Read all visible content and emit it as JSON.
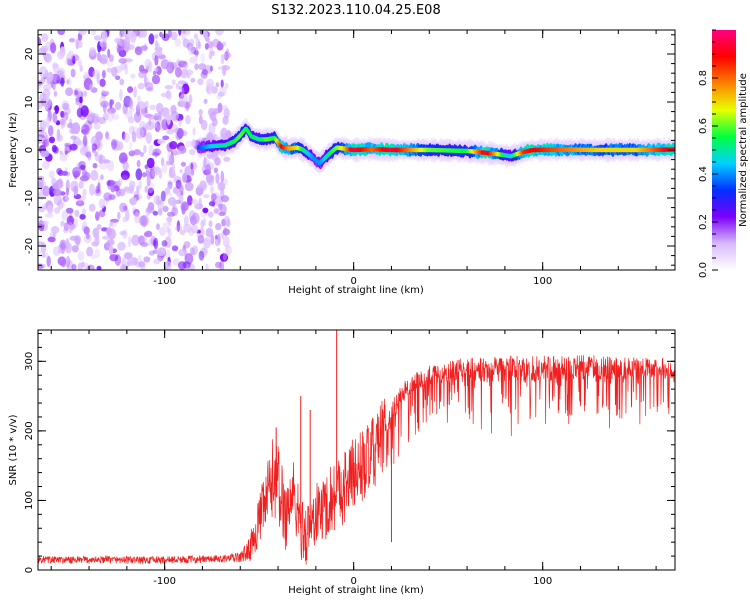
{
  "title": "S132.2023.110.04.25.E08",
  "colors": {
    "background": "#ffffff",
    "axis": "#000000",
    "snr_line": "#f02020",
    "spectrogram_background": "#ffffff"
  },
  "colormap": [
    "#ffffff",
    "#d8b8ff",
    "#7a00ff",
    "#0030ff",
    "#00d0ff",
    "#00ff40",
    "#e8ff00",
    "#ff8000",
    "#ff0000",
    "#ff0080"
  ],
  "chart_data": [
    {
      "type": "heatmap",
      "xlabel": "Height of straight line (km)",
      "ylabel": "Frequency (Hz)",
      "xlim": [
        -167,
        170
      ],
      "ylim": [
        -25,
        25
      ],
      "x_ticks": [
        -100,
        0,
        100
      ],
      "y_ticks": [
        -20,
        -10,
        0,
        10,
        20
      ],
      "grid": false,
      "noise_region_x": [
        -167,
        -66
      ],
      "ridge": {
        "description_values": "center frequency (Hz) of the dominant spectral ridge vs height (km)",
        "x": [
          -82,
          -75,
          -68,
          -63,
          -60,
          -57,
          -54,
          -50,
          -46,
          -42,
          -38,
          -34,
          -30,
          -27,
          -24,
          -21,
          -18,
          -15,
          -12,
          -9,
          -5,
          0,
          10,
          20,
          40,
          60,
          70,
          75,
          80,
          83,
          86,
          90,
          95,
          110,
          130,
          150,
          170
        ],
        "y": [
          0.5,
          0.8,
          1.0,
          1.8,
          3.0,
          4.5,
          2.8,
          2.2,
          2.2,
          2.5,
          0.6,
          0.3,
          0.5,
          0.1,
          -0.8,
          -1.8,
          -2.8,
          -1.6,
          -0.5,
          0.5,
          0.3,
          0.0,
          0.2,
          0.0,
          0.0,
          -0.2,
          -0.6,
          -0.8,
          -1.1,
          -1.3,
          -0.9,
          -0.4,
          0.0,
          0.1,
          0.0,
          0.0,
          0.1
        ],
        "amplitude": [
          0.35,
          0.45,
          0.5,
          0.55,
          0.6,
          0.55,
          0.55,
          0.5,
          0.6,
          0.55,
          0.9,
          0.75,
          0.7,
          0.55,
          0.45,
          0.4,
          0.4,
          0.45,
          0.55,
          0.6,
          0.7,
          0.95,
          0.8,
          0.95,
          0.6,
          0.55,
          0.95,
          0.75,
          0.5,
          0.45,
          0.6,
          0.85,
          0.9,
          0.8,
          0.7,
          0.7,
          0.95
        ]
      }
    },
    {
      "type": "colorbar",
      "label": "Normalized spectral amplitude",
      "range": [
        0,
        1
      ],
      "ticks": [
        0.0,
        0.2,
        0.4,
        0.6,
        0.8
      ]
    },
    {
      "type": "line",
      "xlabel": "Height of straight line (km)",
      "ylabel": "SNR (10 * v/v)",
      "xlim": [
        -167,
        170
      ],
      "ylim": [
        0,
        345
      ],
      "x_ticks": [
        -100,
        0,
        100
      ],
      "y_ticks": [
        0,
        100,
        200,
        300
      ],
      "grid": false,
      "series": [
        {
          "x": [
            -167,
            -150,
            -130,
            -110,
            -90,
            -70,
            -60,
            -55,
            -50,
            -45,
            -42,
            -40,
            -36,
            -32,
            -28,
            -25,
            -20,
            -15,
            -10,
            -5,
            0,
            5,
            10,
            15,
            20,
            25,
            30,
            40,
            50,
            60,
            80,
            100,
            120,
            140,
            160,
            170
          ],
          "y": [
            15,
            14,
            15,
            14,
            15,
            16,
            18,
            30,
            70,
            110,
            140,
            120,
            80,
            110,
            60,
            50,
            80,
            90,
            110,
            120,
            140,
            150,
            165,
            190,
            220,
            245,
            260,
            275,
            280,
            282,
            284,
            285,
            286,
            286,
            285,
            285
          ],
          "noise_amplitude": [
            6,
            6,
            6,
            6,
            6,
            6,
            8,
            20,
            40,
            60,
            70,
            70,
            60,
            60,
            50,
            50,
            50,
            55,
            60,
            60,
            60,
            60,
            60,
            60,
            60,
            55,
            50,
            50,
            55,
            60,
            60,
            60,
            60,
            55,
            50,
            50
          ]
        }
      ],
      "spikes": [
        {
          "x": -41,
          "y": 205
        },
        {
          "x": -28,
          "y": 250
        },
        {
          "x": -23,
          "y": 230
        },
        {
          "x": -9,
          "y": 345
        },
        {
          "x": 20,
          "y": 40
        },
        {
          "x": 120,
          "y": 300
        }
      ]
    }
  ]
}
